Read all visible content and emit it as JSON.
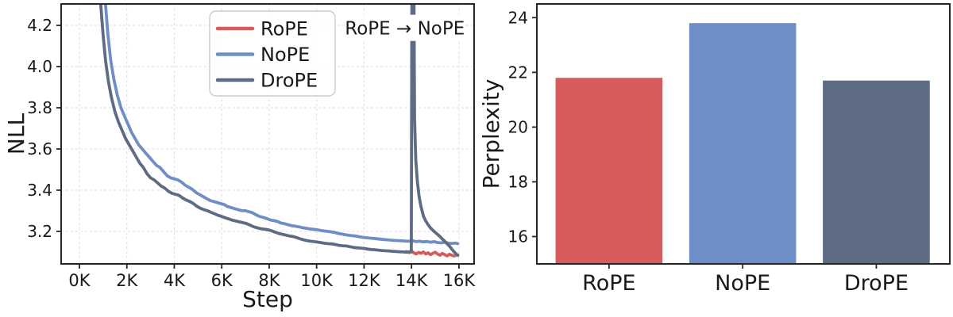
{
  "colors": {
    "rope": "#d65c5c",
    "nope": "#6e8fc5",
    "drope": "#5d6b84",
    "grid": "#dcdce6",
    "spine": "#262626",
    "text": "#1a1a1a",
    "legend_bg": "#ffffff",
    "legend_border": "#cccccc",
    "annotation_bg": "#ffffff"
  },
  "chart_data": [
    {
      "type": "line",
      "title": "",
      "xlabel": "Step",
      "ylabel": "NLL",
      "xlim": [
        -0.77,
        16.64
      ],
      "ylim": [
        3.042,
        4.304
      ],
      "x_ticks": [
        0,
        2,
        4,
        6,
        8,
        10,
        12,
        14,
        16
      ],
      "x_tick_labels": [
        "0K",
        "2K",
        "4K",
        "6K",
        "8K",
        "10K",
        "12K",
        "14K",
        "16K"
      ],
      "y_ticks": [
        3.2,
        3.4,
        3.6,
        3.8,
        4.0,
        4.2
      ],
      "y_tick_labels": [
        "3.2",
        "3.4",
        "3.6",
        "3.8",
        "4.0",
        "4.2"
      ],
      "grid": true,
      "legend": {
        "position": "upper center-left",
        "entries": [
          "RoPE",
          "NoPE",
          "DroPE"
        ]
      },
      "annotation": {
        "text": "RoPE → NoPE",
        "x": 13.72,
        "y": 4.19
      },
      "series": [
        {
          "name": "RoPE",
          "color_key": "rope",
          "points": [
            [
              13.78,
              3.102
            ],
            [
              13.9,
              3.097
            ],
            [
              14.0,
              3.104
            ],
            [
              14.1,
              3.096
            ],
            [
              14.2,
              3.09
            ],
            [
              14.3,
              3.098
            ],
            [
              14.4,
              3.093
            ],
            [
              14.5,
              3.1
            ],
            [
              14.6,
              3.09
            ],
            [
              14.7,
              3.096
            ],
            [
              14.8,
              3.087
            ],
            [
              14.9,
              3.093
            ],
            [
              15.0,
              3.099
            ],
            [
              15.1,
              3.09
            ],
            [
              15.2,
              3.084
            ],
            [
              15.3,
              3.093
            ],
            [
              15.4,
              3.087
            ],
            [
              15.5,
              3.081
            ],
            [
              15.6,
              3.089
            ],
            [
              15.7,
              3.084
            ],
            [
              15.8,
              3.08
            ],
            [
              15.9,
              3.086
            ],
            [
              15.95,
              3.083
            ]
          ]
        },
        {
          "name": "NoPE",
          "color_key": "nope",
          "points": [
            [
              1.02,
              4.45
            ],
            [
              1.1,
              4.3
            ],
            [
              1.2,
              4.16
            ],
            [
              1.32,
              4.03
            ],
            [
              1.45,
              3.94
            ],
            [
              1.6,
              3.86
            ],
            [
              1.75,
              3.8
            ],
            [
              1.9,
              3.76
            ],
            [
              2.05,
              3.72
            ],
            [
              2.2,
              3.68
            ],
            [
              2.35,
              3.65
            ],
            [
              2.5,
              3.62
            ],
            [
              2.65,
              3.6
            ],
            [
              2.8,
              3.58
            ],
            [
              2.95,
              3.56
            ],
            [
              3.1,
              3.54
            ],
            [
              3.25,
              3.52
            ],
            [
              3.4,
              3.51
            ],
            [
              3.55,
              3.49
            ],
            [
              3.7,
              3.47
            ],
            [
              3.85,
              3.46
            ],
            [
              4.0,
              3.455
            ],
            [
              4.15,
              3.45
            ],
            [
              4.3,
              3.44
            ],
            [
              4.45,
              3.425
            ],
            [
              4.6,
              3.415
            ],
            [
              4.75,
              3.405
            ],
            [
              4.9,
              3.39
            ],
            [
              5.05,
              3.38
            ],
            [
              5.2,
              3.37
            ],
            [
              5.35,
              3.36
            ],
            [
              5.5,
              3.35
            ],
            [
              5.65,
              3.345
            ],
            [
              5.8,
              3.34
            ],
            [
              5.95,
              3.335
            ],
            [
              6.1,
              3.33
            ],
            [
              6.25,
              3.32
            ],
            [
              6.4,
              3.315
            ],
            [
              6.55,
              3.31
            ],
            [
              6.7,
              3.305
            ],
            [
              6.85,
              3.3
            ],
            [
              7.0,
              3.3
            ],
            [
              7.15,
              3.295
            ],
            [
              7.3,
              3.29
            ],
            [
              7.45,
              3.28
            ],
            [
              7.6,
              3.272
            ],
            [
              7.75,
              3.268
            ],
            [
              7.9,
              3.262
            ],
            [
              8.05,
              3.255
            ],
            [
              8.2,
              3.252
            ],
            [
              8.35,
              3.248
            ],
            [
              8.5,
              3.24
            ],
            [
              8.65,
              3.237
            ],
            [
              8.8,
              3.232
            ],
            [
              8.95,
              3.228
            ],
            [
              9.1,
              3.225
            ],
            [
              9.25,
              3.222
            ],
            [
              9.4,
              3.218
            ],
            [
              9.55,
              3.215
            ],
            [
              9.7,
              3.212
            ],
            [
              9.85,
              3.21
            ],
            [
              10.0,
              3.208
            ],
            [
              10.15,
              3.205
            ],
            [
              10.3,
              3.202
            ],
            [
              10.45,
              3.2
            ],
            [
              10.6,
              3.198
            ],
            [
              10.75,
              3.195
            ],
            [
              10.9,
              3.19
            ],
            [
              11.05,
              3.187
            ],
            [
              11.2,
              3.184
            ],
            [
              11.35,
              3.181
            ],
            [
              11.5,
              3.179
            ],
            [
              11.65,
              3.177
            ],
            [
              11.8,
              3.174
            ],
            [
              11.95,
              3.171
            ],
            [
              12.1,
              3.169
            ],
            [
              12.25,
              3.167
            ],
            [
              12.4,
              3.166
            ],
            [
              12.55,
              3.164
            ],
            [
              12.7,
              3.162
            ],
            [
              12.85,
              3.16
            ],
            [
              13.0,
              3.159
            ],
            [
              13.15,
              3.157
            ],
            [
              13.3,
              3.156
            ],
            [
              13.45,
              3.155
            ],
            [
              13.6,
              3.154
            ],
            [
              13.75,
              3.153
            ],
            [
              13.9,
              3.152
            ],
            [
              14.05,
              3.154
            ],
            [
              14.2,
              3.15
            ],
            [
              14.35,
              3.152
            ],
            [
              14.5,
              3.149
            ],
            [
              14.65,
              3.151
            ],
            [
              14.8,
              3.147
            ],
            [
              14.95,
              3.15
            ],
            [
              15.1,
              3.146
            ],
            [
              15.25,
              3.144
            ],
            [
              15.4,
              3.147
            ],
            [
              15.55,
              3.143
            ],
            [
              15.7,
              3.141
            ],
            [
              15.85,
              3.143
            ],
            [
              15.95,
              3.14
            ]
          ]
        },
        {
          "name": "DroPE",
          "color_key": "drope",
          "points": [
            [
              0.82,
              4.45
            ],
            [
              0.9,
              4.3
            ],
            [
              1.0,
              4.15
            ],
            [
              1.1,
              4.03
            ],
            [
              1.22,
              3.93
            ],
            [
              1.35,
              3.85
            ],
            [
              1.5,
              3.78
            ],
            [
              1.65,
              3.73
            ],
            [
              1.8,
              3.69
            ],
            [
              1.95,
              3.65
            ],
            [
              2.1,
              3.62
            ],
            [
              2.25,
              3.59
            ],
            [
              2.4,
              3.56
            ],
            [
              2.55,
              3.53
            ],
            [
              2.7,
              3.51
            ],
            [
              2.85,
              3.48
            ],
            [
              3.0,
              3.46
            ],
            [
              3.15,
              3.45
            ],
            [
              3.3,
              3.435
            ],
            [
              3.45,
              3.42
            ],
            [
              3.6,
              3.41
            ],
            [
              3.75,
              3.395
            ],
            [
              3.9,
              3.385
            ],
            [
              4.05,
              3.38
            ],
            [
              4.2,
              3.375
            ],
            [
              4.35,
              3.362
            ],
            [
              4.5,
              3.352
            ],
            [
              4.65,
              3.345
            ],
            [
              4.8,
              3.335
            ],
            [
              4.95,
              3.322
            ],
            [
              5.1,
              3.312
            ],
            [
              5.25,
              3.305
            ],
            [
              5.4,
              3.3
            ],
            [
              5.55,
              3.292
            ],
            [
              5.7,
              3.285
            ],
            [
              5.85,
              3.278
            ],
            [
              6.0,
              3.272
            ],
            [
              6.15,
              3.266
            ],
            [
              6.3,
              3.26
            ],
            [
              6.45,
              3.254
            ],
            [
              6.6,
              3.25
            ],
            [
              6.75,
              3.246
            ],
            [
              6.9,
              3.242
            ],
            [
              7.05,
              3.238
            ],
            [
              7.2,
              3.23
            ],
            [
              7.35,
              3.222
            ],
            [
              7.5,
              3.217
            ],
            [
              7.65,
              3.213
            ],
            [
              7.8,
              3.21
            ],
            [
              7.95,
              3.208
            ],
            [
              8.1,
              3.203
            ],
            [
              8.25,
              3.196
            ],
            [
              8.4,
              3.19
            ],
            [
              8.55,
              3.186
            ],
            [
              8.7,
              3.182
            ],
            [
              8.85,
              3.178
            ],
            [
              9.0,
              3.175
            ],
            [
              9.15,
              3.17
            ],
            [
              9.3,
              3.164
            ],
            [
              9.45,
              3.159
            ],
            [
              9.6,
              3.155
            ],
            [
              9.75,
              3.152
            ],
            [
              9.9,
              3.15
            ],
            [
              10.05,
              3.148
            ],
            [
              10.2,
              3.145
            ],
            [
              10.35,
              3.142
            ],
            [
              10.5,
              3.14
            ],
            [
              10.65,
              3.139
            ],
            [
              10.8,
              3.136
            ],
            [
              10.95,
              3.132
            ],
            [
              11.1,
              3.13
            ],
            [
              11.25,
              3.129
            ],
            [
              11.4,
              3.126
            ],
            [
              11.55,
              3.122
            ],
            [
              11.7,
              3.12
            ],
            [
              11.85,
              3.119
            ],
            [
              12.0,
              3.117
            ],
            [
              12.15,
              3.114
            ],
            [
              12.3,
              3.112
            ],
            [
              12.45,
              3.111
            ],
            [
              12.6,
              3.109
            ],
            [
              12.75,
              3.107
            ],
            [
              12.9,
              3.106
            ],
            [
              13.05,
              3.105
            ],
            [
              13.2,
              3.103
            ],
            [
              13.35,
              3.102
            ],
            [
              13.5,
              3.101
            ],
            [
              13.65,
              3.1
            ],
            [
              13.8,
              3.099
            ],
            [
              13.92,
              3.101
            ],
            [
              13.99,
              3.1
            ],
            [
              14.02,
              4.45
            ],
            [
              14.1,
              4.45
            ],
            [
              14.13,
              3.75
            ],
            [
              14.18,
              3.55
            ],
            [
              14.25,
              3.44
            ],
            [
              14.32,
              3.37
            ],
            [
              14.4,
              3.32
            ],
            [
              14.5,
              3.275
            ],
            [
              14.6,
              3.25
            ],
            [
              14.7,
              3.232
            ],
            [
              14.8,
              3.217
            ],
            [
              14.9,
              3.205
            ],
            [
              15.0,
              3.195
            ],
            [
              15.1,
              3.185
            ],
            [
              15.2,
              3.175
            ],
            [
              15.3,
              3.163
            ],
            [
              15.4,
              3.152
            ],
            [
              15.5,
              3.14
            ],
            [
              15.6,
              3.128
            ],
            [
              15.7,
              3.114
            ],
            [
              15.8,
              3.1
            ],
            [
              15.9,
              3.088
            ],
            [
              15.95,
              3.085
            ]
          ]
        }
      ]
    },
    {
      "type": "bar",
      "title": "",
      "xlabel": "",
      "ylabel": "Perplexity",
      "categories": [
        "RoPE",
        "NoPE",
        "DroPE"
      ],
      "values": [
        21.8,
        23.8,
        21.7
      ],
      "bar_color_keys": [
        "rope",
        "nope",
        "drope"
      ],
      "xlim": [
        -0.54,
        2.55
      ],
      "ylim": [
        15,
        24.5
      ],
      "y_ticks": [
        16,
        18,
        20,
        22,
        24
      ],
      "y_tick_labels": [
        "16",
        "18",
        "20",
        "22",
        "24"
      ],
      "grid": false,
      "legend_position": "none"
    }
  ]
}
